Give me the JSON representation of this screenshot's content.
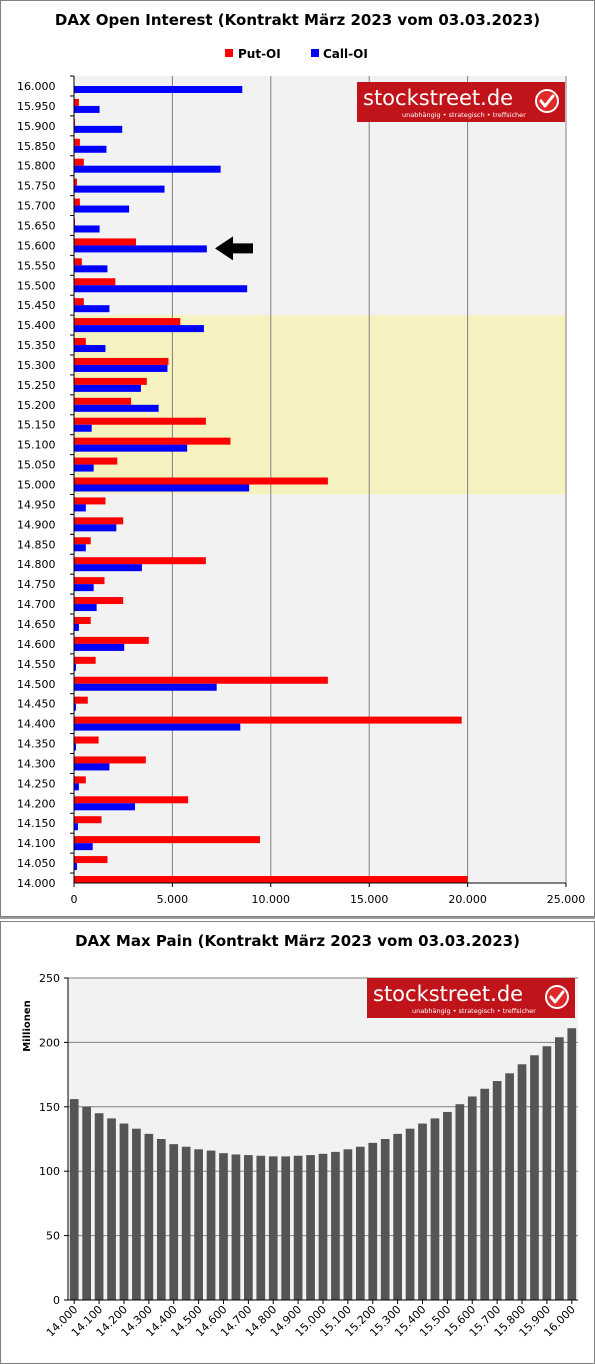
{
  "colors": {
    "put": "#ff0000",
    "call": "#0000ff",
    "highlight": "#f5f2c0",
    "plot_bg": "#f2f2f2",
    "bar_gray": "#555555",
    "logo_bg": "#c0141a"
  },
  "logo": {
    "name": "stockstreet.de",
    "tagline": "unabhängig • strategisch • treffsicher"
  },
  "chart_data": [
    {
      "type": "bar",
      "orientation": "horizontal",
      "title": "DAX Open Interest (Kontrakt März 2023 vom 03.03.2023)",
      "categories": [
        "16.000",
        "15.950",
        "15.900",
        "15.850",
        "15.800",
        "15.750",
        "15.700",
        "15.650",
        "15.600",
        "15.550",
        "15.500",
        "15.450",
        "15.400",
        "15.350",
        "15.300",
        "15.250",
        "15.200",
        "15.150",
        "15.100",
        "15.050",
        "15.000",
        "14.950",
        "14.900",
        "14.850",
        "14.800",
        "14.750",
        "14.700",
        "14.650",
        "14.600",
        "14.550",
        "14.500",
        "14.450",
        "14.400",
        "14.350",
        "14.300",
        "14.250",
        "14.200",
        "14.150",
        "14.100",
        "14.050",
        "14.000"
      ],
      "series": [
        {
          "name": "Put-OI",
          "values": [
            0,
            250,
            50,
            300,
            500,
            150,
            300,
            50,
            3150,
            400,
            2100,
            500,
            5400,
            600,
            4800,
            3700,
            2900,
            6700,
            7950,
            2200,
            12900,
            1600,
            2500,
            850,
            6700,
            1550,
            2500,
            850,
            3800,
            1100,
            12900,
            700,
            19700,
            1250,
            3650,
            600,
            5800,
            1400,
            9450,
            1700,
            20000
          ]
        },
        {
          "name": "Call-OI",
          "values": [
            8550,
            1300,
            2450,
            1650,
            7450,
            4600,
            2800,
            1300,
            6750,
            1700,
            8800,
            1800,
            6600,
            1600,
            4750,
            3400,
            4300,
            900,
            5750,
            1000,
            8900,
            600,
            2150,
            600,
            3450,
            1000,
            1150,
            250,
            2550,
            100,
            7250,
            100,
            8450,
            100,
            1800,
            250,
            3100,
            200,
            950,
            150,
            0
          ]
        }
      ],
      "xlim": [
        0,
        25000
      ],
      "xticks": [
        "0",
        "5.000",
        "10.000",
        "15.000",
        "20.000",
        "25.000"
      ],
      "highlight_range": [
        "15.400",
        "15.000"
      ],
      "marker": {
        "level": "15.600",
        "icon": "left-arrow-icon"
      },
      "legend_position": "top",
      "grid": "vertical"
    },
    {
      "type": "bar",
      "title": "DAX Max Pain (Kontrakt März 2023 vom 03.03.2023)",
      "ylabel": "Millionen",
      "ylim": [
        0,
        250
      ],
      "yticks": [
        "0",
        "50",
        "100",
        "150",
        "200",
        "250"
      ],
      "categories": [
        "14.000",
        "14.050",
        "14.100",
        "14.150",
        "14.200",
        "14.250",
        "14.300",
        "14.350",
        "14.400",
        "14.450",
        "14.500",
        "14.550",
        "14.600",
        "14.650",
        "14.700",
        "14.750",
        "14.800",
        "14.850",
        "14.900",
        "14.950",
        "15.000",
        "15.050",
        "15.100",
        "15.150",
        "15.200",
        "15.250",
        "15.300",
        "15.350",
        "15.400",
        "15.450",
        "15.500",
        "15.550",
        "15.600",
        "15.650",
        "15.700",
        "15.750",
        "15.800",
        "15.850",
        "15.900",
        "15.950",
        "16.000"
      ],
      "xtick_labels": [
        "14.000",
        "14.100",
        "14.200",
        "14.300",
        "14.400",
        "14.500",
        "14.600",
        "14.700",
        "14.800",
        "14.900",
        "15.000",
        "15.100",
        "15.200",
        "15.300",
        "15.400",
        "15.500",
        "15.600",
        "15.700",
        "15.800",
        "15.900",
        "16.000"
      ],
      "values": [
        156,
        150,
        145,
        141,
        137,
        133,
        129,
        125,
        121,
        119,
        117,
        116,
        114,
        113,
        112.5,
        112,
        111.5,
        111.5,
        112,
        112.5,
        113.5,
        115,
        117,
        119,
        122,
        125,
        129,
        133,
        137,
        141,
        146,
        152,
        158,
        164,
        170,
        176,
        183,
        190,
        197,
        204,
        211
      ],
      "grid": "horizontal"
    }
  ]
}
